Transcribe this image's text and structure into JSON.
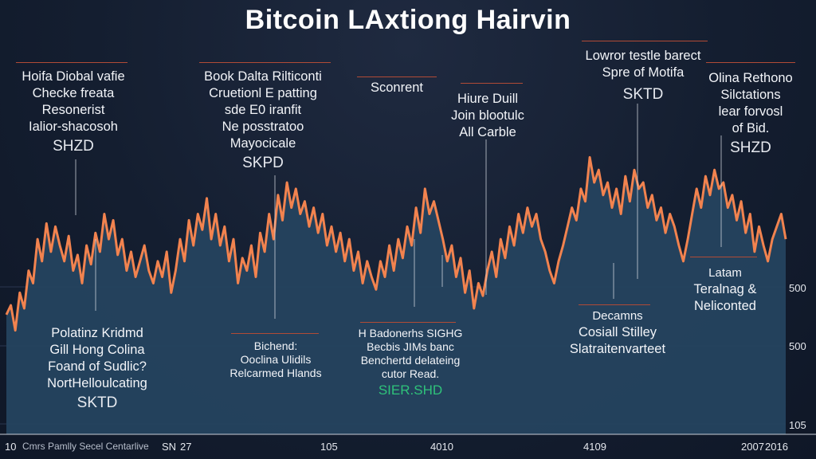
{
  "chart_data": {
    "type": "area",
    "title": "Bitcoin LAxtiong Hairvin",
    "xlabel": "",
    "ylabel": "",
    "ylim": [
      0,
      100
    ],
    "colors": {
      "line": "#f2834f",
      "fill": "#25435f",
      "grid": "#2a3650"
    },
    "series": [
      {
        "name": "price",
        "values": [
          38,
          41,
          33,
          45,
          40,
          52,
          48,
          62,
          55,
          67,
          58,
          66,
          60,
          55,
          63,
          52,
          57,
          48,
          60,
          54,
          64,
          58,
          70,
          62,
          68,
          57,
          62,
          52,
          58,
          50,
          55,
          60,
          52,
          48,
          55,
          50,
          58,
          45,
          52,
          62,
          55,
          68,
          60,
          70,
          65,
          75,
          62,
          70,
          60,
          66,
          55,
          62,
          48,
          56,
          52,
          60,
          50,
          64,
          58,
          70,
          62,
          76,
          68,
          80,
          72,
          78,
          70,
          74,
          66,
          72,
          64,
          70,
          60,
          66,
          58,
          64,
          55,
          62,
          52,
          58,
          48,
          55,
          50,
          46,
          55,
          50,
          60,
          52,
          62,
          56,
          66,
          60,
          72,
          64,
          78,
          70,
          74,
          68,
          62,
          55,
          60,
          50,
          56,
          45,
          52,
          40,
          48,
          44,
          52,
          58,
          50,
          62,
          56,
          66,
          60,
          70,
          64,
          72,
          66,
          70,
          62,
          58,
          52,
          48,
          55,
          60,
          66,
          72,
          68,
          78,
          74,
          88,
          80,
          84,
          76,
          80,
          72,
          78,
          70,
          82,
          74,
          84,
          78,
          80,
          72,
          76,
          68,
          72,
          64,
          70,
          66,
          60,
          55,
          62,
          70,
          78,
          72,
          82,
          76,
          84,
          78,
          80,
          72,
          76,
          68,
          74,
          64,
          70,
          58,
          66,
          60,
          55,
          62,
          66,
          70,
          62
        ]
      }
    ],
    "y_ticks": [
      "500",
      "500",
      "105"
    ],
    "x_ticks": [
      "10",
      "SN",
      "27",
      "105",
      "4010",
      "4109",
      "2007",
      "2016"
    ],
    "annotations": [
      {
        "lines": [
          "Hoifa Diobal vafie",
          "Checke freata",
          "Resonerist",
          "Ialior-shacosoh"
        ],
        "value": "SHZD"
      },
      {
        "lines": [
          "Book Dalta Rilticonti",
          "Cruetionl E patting",
          "sde E0 iranfit",
          "Ne posstratoo",
          "Mayocicale"
        ],
        "value": "SKPD"
      },
      {
        "lines": [
          "Sconrent"
        ],
        "value": ""
      },
      {
        "lines": [
          "Hiure Duill",
          "Join blootulc",
          "All Carble"
        ],
        "value": ""
      },
      {
        "lines": [
          "Lowror testle barect",
          "Spre of Motifa"
        ],
        "value": "SKTD"
      },
      {
        "lines": [
          "Olina Rethono",
          "Silctations",
          "lear forvosl",
          "of Bid."
        ],
        "value": "SHZD"
      },
      {
        "lines": [
          "Polatinz Kridmd",
          "Gill Hong Colina",
          "Foand of Sudlic?",
          "NortHelloulcating"
        ],
        "value": "SKTD"
      },
      {
        "lines": [
          "Bichend:",
          "Ooclina Ulidils",
          "Relcarmed Hlands"
        ],
        "value": ""
      },
      {
        "lines": [
          "H Badonerhs SIGHG",
          "Becbis JIMs banc",
          "Benchertd delateing",
          "cutor Read."
        ],
        "value": "SIER.SHD"
      },
      {
        "lines": [
          "Decamns",
          "Cosiall Stilley",
          "Slatraitenvarteet"
        ],
        "value": ""
      },
      {
        "lines": [
          "Latam",
          "Teralnag &",
          "Neliconted"
        ],
        "value": ""
      }
    ]
  },
  "footer": {
    "text": "Cmrs Pamlly Secel Centarlive"
  }
}
